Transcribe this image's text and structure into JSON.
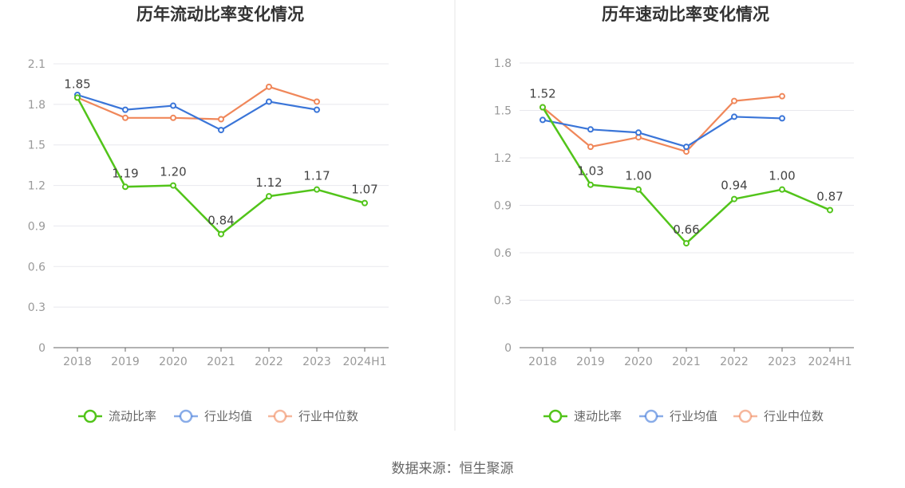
{
  "chart_data": [
    {
      "type": "line",
      "title": "历年流动比率变化情况",
      "categories": [
        "2018",
        "2019",
        "2020",
        "2021",
        "2022",
        "2023",
        "2024H1"
      ],
      "ylim": [
        0,
        2.1
      ],
      "yticks": [
        "0",
        "0.3",
        "0.6",
        "0.9",
        "1.2",
        "1.5",
        "1.8",
        "2.1"
      ],
      "grid": true,
      "legend_position": "bottom",
      "series": [
        {
          "name": "流动比率",
          "color": "#52c41a",
          "values": [
            1.85,
            1.19,
            1.2,
            0.84,
            1.12,
            1.17,
            1.07
          ],
          "labels": [
            "1.85",
            "1.19",
            "1.20",
            "0.84",
            "1.12",
            "1.17",
            "1.07"
          ]
        },
        {
          "name": "行业均值",
          "color": "#3a75d8",
          "values": [
            1.87,
            1.76,
            1.79,
            1.61,
            1.82,
            1.76,
            null
          ]
        },
        {
          "name": "行业中位数",
          "color": "#f0875a",
          "values": [
            1.85,
            1.7,
            1.7,
            1.69,
            1.93,
            1.82,
            null
          ]
        }
      ]
    },
    {
      "type": "line",
      "title": "历年速动比率变化情况",
      "categories": [
        "2018",
        "2019",
        "2020",
        "2021",
        "2022",
        "2023",
        "2024H1"
      ],
      "ylim": [
        0,
        1.8
      ],
      "yticks": [
        "0",
        "0.3",
        "0.6",
        "0.9",
        "1.2",
        "1.5",
        "1.8"
      ],
      "grid": true,
      "legend_position": "bottom",
      "series": [
        {
          "name": "速动比率",
          "color": "#52c41a",
          "values": [
            1.52,
            1.03,
            1.0,
            0.66,
            0.94,
            1.0,
            0.87
          ],
          "labels": [
            "1.52",
            "1.03",
            "1.00",
            "0.66",
            "0.94",
            "1.00",
            "0.87"
          ]
        },
        {
          "name": "行业均值",
          "color": "#3a75d8",
          "values": [
            1.44,
            1.38,
            1.36,
            1.27,
            1.46,
            1.45,
            null
          ]
        },
        {
          "name": "行业中位数",
          "color": "#f0875a",
          "values": [
            1.52,
            1.27,
            1.33,
            1.24,
            1.56,
            1.59,
            null
          ]
        }
      ]
    }
  ],
  "footer": {
    "source": "数据来源：恒生聚源"
  },
  "divider_color": "#e6e6e6",
  "axis_color": "#666666",
  "grid_color": "#e8e8ee"
}
